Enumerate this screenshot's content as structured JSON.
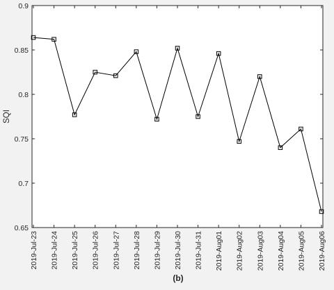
{
  "chart_data": {
    "type": "line",
    "title": "",
    "xlabel": "",
    "ylabel": "SQI",
    "caption": "(b)",
    "x": [
      "2019-Jul-23",
      "2019-Jul-24",
      "2019-Jul-25",
      "2019-Jul-26",
      "2019-Jul-27",
      "2019-Jul-28",
      "2019-Jul-29",
      "2019-Jul-30",
      "2019-Jul-31",
      "2019-Aug01",
      "2019-Aug02",
      "2019-Aug03",
      "2019-Aug04",
      "2019-Aug05",
      "2019-Aug06"
    ],
    "series": [
      {
        "values": [
          0.864,
          0.862,
          0.777,
          0.825,
          0.821,
          0.848,
          0.772,
          0.852,
          0.775,
          0.846,
          0.747,
          0.82,
          0.74,
          0.761,
          0.668
        ],
        "marker": "square",
        "color": "#000000"
      }
    ],
    "ylim": [
      0.65,
      0.9
    ],
    "yticks": [
      "0.65",
      "0.7",
      "0.75",
      "0.8",
      "0.85",
      "0.9"
    ],
    "grid": false,
    "legend": "none",
    "colors": {
      "background": "#f2f2f2",
      "plot_area": "#ffffff",
      "axis": "#262626"
    }
  }
}
